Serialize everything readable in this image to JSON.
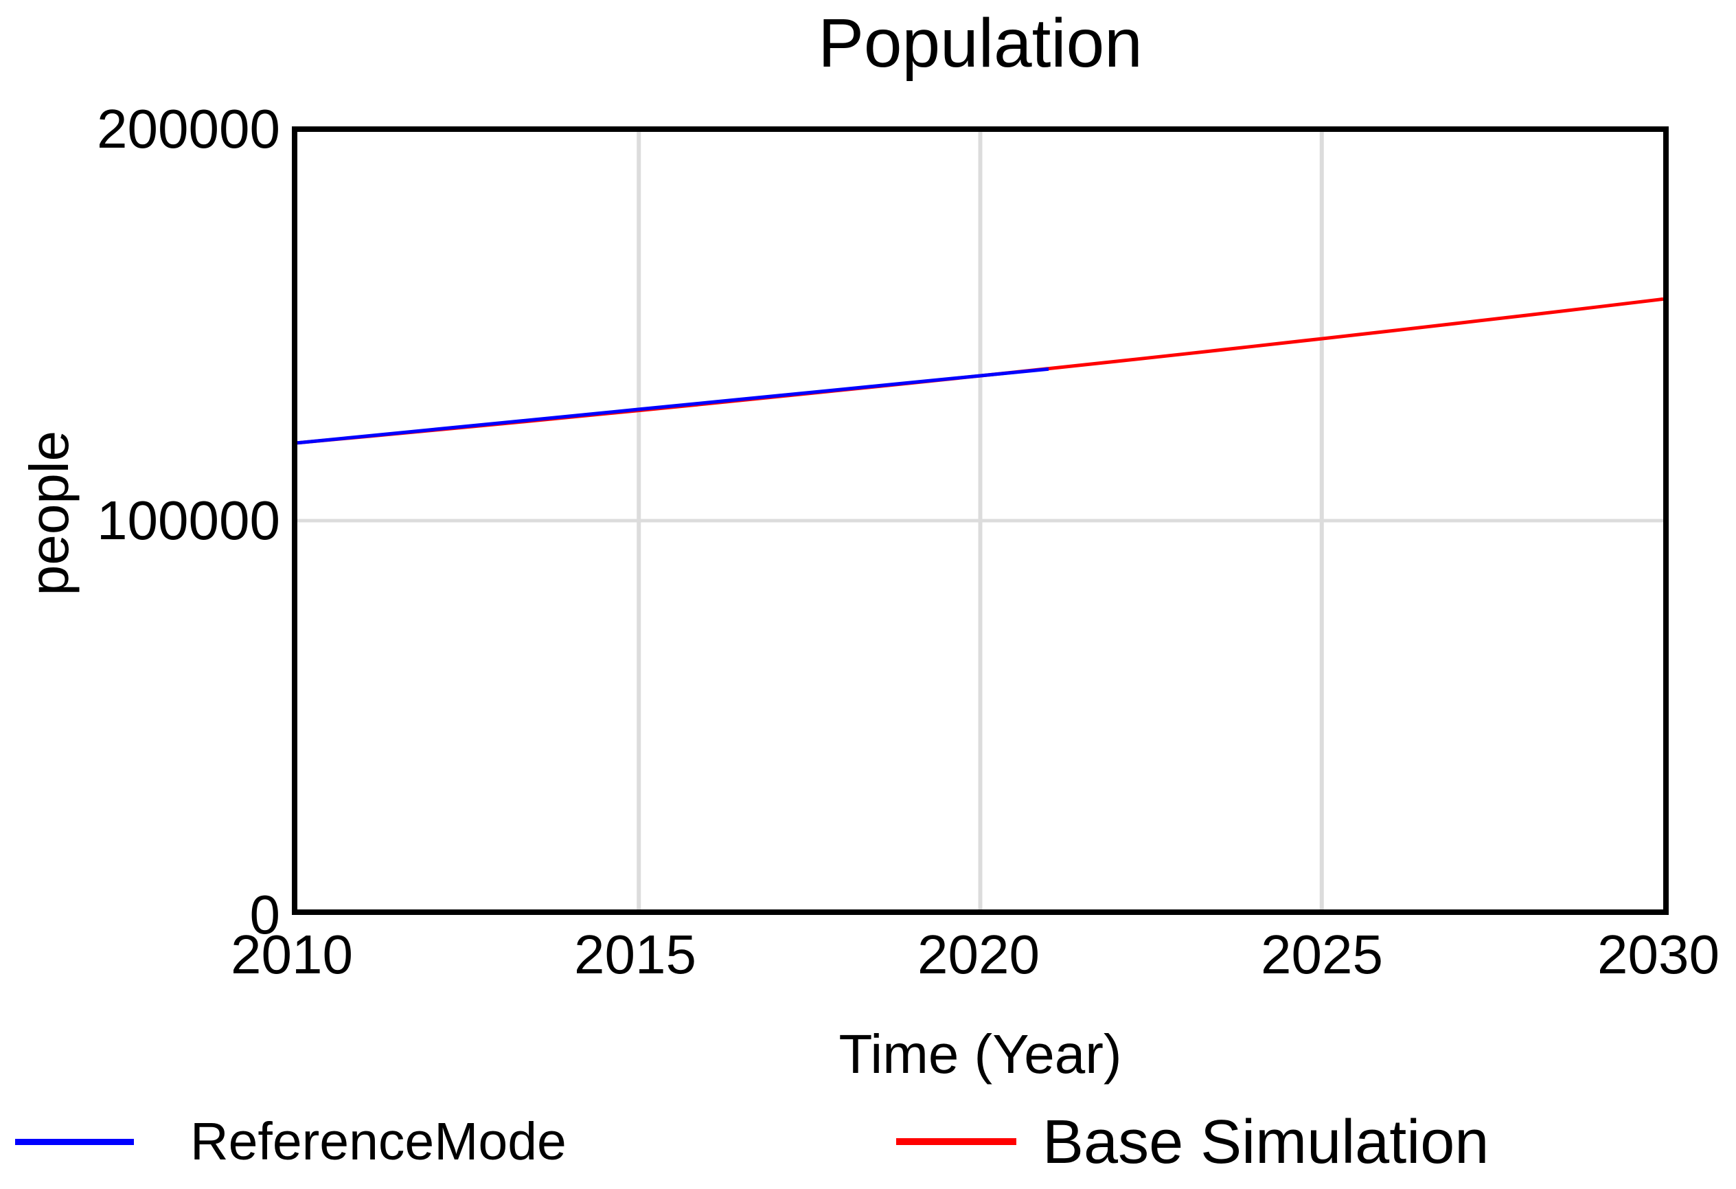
{
  "title": "Population",
  "axes": {
    "y_label": "people",
    "x_label": "Time (Year)",
    "y_ticks": [
      "200000",
      "100000",
      "0"
    ],
    "x_ticks": [
      "2010",
      "2015",
      "2020",
      "2025",
      "2030"
    ]
  },
  "legend": {
    "items": [
      {
        "label": "ReferenceMode",
        "color": "#0000ff"
      },
      {
        "label": "Base Simulation",
        "color": "#ff0000"
      }
    ]
  },
  "colors": {
    "background": "#ffffff",
    "text": "#000000",
    "plot_border": "#000000",
    "gridline": "#dcdcdc",
    "reference_mode": "#0000ff",
    "base_simulation": "#ff0000"
  },
  "chart_data": {
    "type": "line",
    "title": "Population",
    "xlabel": "Time (Year)",
    "ylabel": "people",
    "xlim": [
      2010,
      2030
    ],
    "ylim": [
      0,
      200000
    ],
    "x_ticks": [
      2010,
      2015,
      2020,
      2025,
      2030
    ],
    "y_ticks": [
      0,
      100000,
      200000
    ],
    "grid": true,
    "legend_position": "bottom",
    "series": [
      {
        "name": "ReferenceMode",
        "color": "#0000ff",
        "x": [
          2010,
          2011,
          2012,
          2013,
          2014,
          2015,
          2016,
          2017,
          2018,
          2019,
          2020,
          2021
        ],
        "y": [
          120000,
          121727,
          123455,
          125182,
          126909,
          128636,
          130364,
          132091,
          133818,
          135545,
          137273,
          139000
        ]
      },
      {
        "name": "Base Simulation",
        "color": "#ff0000",
        "x": [
          2010,
          2011,
          2012,
          2013,
          2014,
          2015,
          2016,
          2017,
          2018,
          2019,
          2020,
          2021,
          2022,
          2023,
          2024,
          2025,
          2026,
          2027,
          2028,
          2029,
          2030
        ],
        "y": [
          120000,
          121623,
          123269,
          124936,
          126626,
          128339,
          130075,
          131835,
          133618,
          135426,
          137258,
          139115,
          140997,
          142904,
          144837,
          146796,
          148782,
          150795,
          152835,
          154902,
          157000
        ]
      }
    ]
  }
}
